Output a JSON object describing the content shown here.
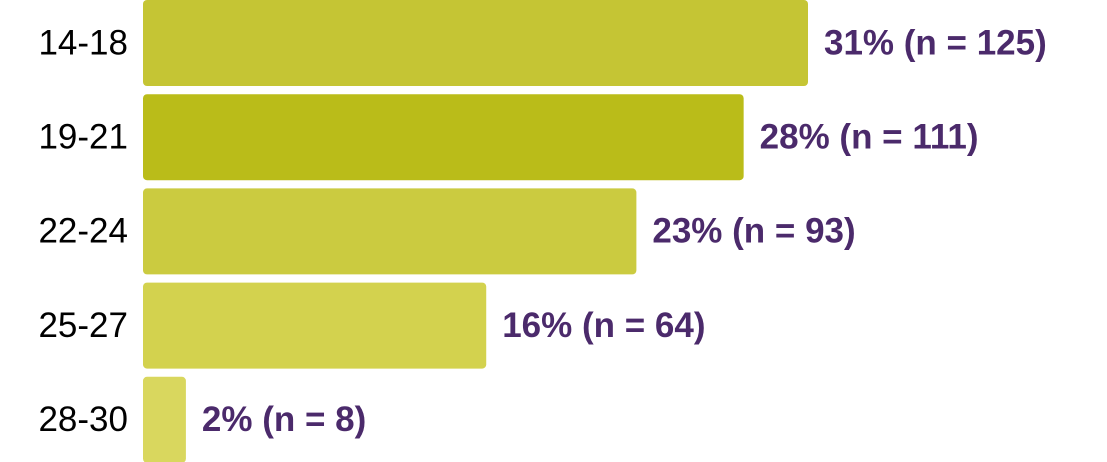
{
  "chart_data": {
    "type": "hbar",
    "categories": [
      "14-18",
      "19-21",
      "22-24",
      "25-27",
      "28-30"
    ],
    "values": [
      31,
      28,
      23,
      16,
      2
    ],
    "value_labels": [
      "31% (n = 125)",
      "28% (n = 111)",
      "23% (n = 93)",
      "16% (n = 64)",
      "2% (n = 8)"
    ],
    "colors": [
      "#c5c534",
      "#babc19",
      "#cbcb40",
      "#d3d24e",
      "#d9d75e"
    ]
  }
}
